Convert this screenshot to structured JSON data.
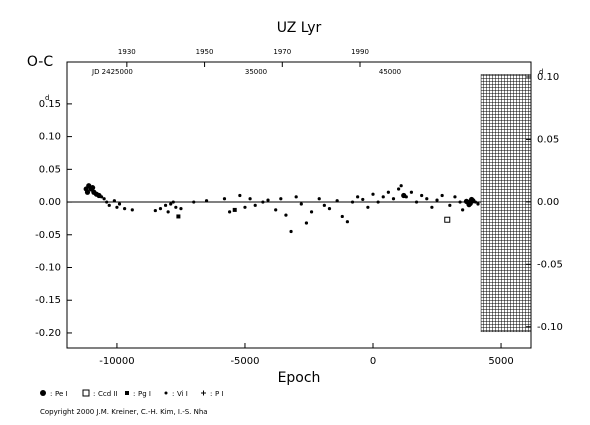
{
  "chart_data": {
    "type": "scatter",
    "title": "UZ Lyr",
    "y_label": "O-C",
    "y_unit": "d",
    "x_label": "Epoch",
    "xlim": [
      -11950,
      6170
    ],
    "xticks": [
      -10000,
      -5000,
      0,
      5000
    ],
    "ylim": [
      -0.223,
      0.214
    ],
    "yticks": [
      {
        "value": 0.15,
        "label": "0.15"
      },
      {
        "value": 0.1,
        "label": "0.10"
      },
      {
        "value": 0.05,
        "label": "0.05"
      },
      {
        "value": 0,
        "label": "0.00"
      },
      {
        "value": -0.05,
        "label": "-0.05"
      },
      {
        "value": -0.1,
        "label": "-0.10"
      },
      {
        "value": -0.15,
        "label": "-0.15"
      },
      {
        "value": -0.2,
        "label": "-0.20"
      }
    ],
    "y2lim": [
      -0.117,
      0.112
    ],
    "y2ticks": [
      {
        "value": 0.1,
        "label": "0.10"
      },
      {
        "value": 0.05,
        "label": "0.05"
      },
      {
        "value": 0,
        "label": "0.00"
      },
      {
        "value": -0.05,
        "label": "-0.05"
      },
      {
        "value": -0.1,
        "label": "-0.10"
      }
    ],
    "x2lim": [
      1914.6,
      2034
    ],
    "x2ticks": [
      1930,
      1950,
      1970,
      1990
    ],
    "jd_labels": [
      "JD 2425000",
      "35000",
      "45000"
    ],
    "shaded_region": {
      "x": [
        4220,
        6170
      ],
      "y2": [
        -0.104,
        0.102
      ]
    },
    "series": [
      {
        "name": "Pe I",
        "marker": "big-dot",
        "color": "#000",
        "x": [
          -11200,
          -11100,
          -11000,
          -10900,
          -11150,
          -10950,
          -10800,
          -10700,
          3700,
          3800,
          3900,
          3750,
          3850,
          3650,
          1200
        ],
        "values": [
          0.02,
          0.025,
          0.02,
          0.015,
          0.015,
          0.022,
          0.012,
          0.01,
          0,
          -0.002,
          0.002,
          -0.004,
          0.004,
          0.001,
          0.01
        ]
      },
      {
        "name": "Ccd II",
        "marker": "open-square",
        "color": "#000",
        "x": [
          2900
        ],
        "values": [
          -0.027
        ]
      },
      {
        "name": "Pg I",
        "marker": "square",
        "color": "#000",
        "x": [
          -7600,
          -5400
        ],
        "values": [
          -0.022,
          -0.012
        ]
      },
      {
        "name": "Vi I",
        "marker": "dot",
        "color": "#000",
        "x": [
          -10600,
          -10500,
          -10400,
          -10300,
          -10100,
          -10000,
          -9900,
          -9700,
          -9400,
          -8500,
          -8300,
          -8100,
          -8000,
          -7900,
          -7800,
          -7700,
          -7500,
          -7000,
          -6500,
          -5800,
          -5600,
          -5200,
          -5000,
          -4800,
          -4600,
          -4300,
          -4100,
          -3800,
          -3600,
          -3400,
          -3200,
          -3000,
          -2800,
          -2600,
          -2400,
          -2100,
          -1900,
          -1700,
          -1400,
          -1200,
          -1000,
          -800,
          -600,
          -400,
          -200,
          0,
          200,
          400,
          600,
          800,
          1000,
          1100,
          1300,
          1500,
          1700,
          1900,
          2100,
          2300,
          2500,
          2700,
          3000,
          3200,
          3400,
          3500,
          4000,
          4100
        ],
        "values": [
          0.008,
          0.005,
          0,
          -0.005,
          0.002,
          -0.008,
          -0.003,
          -0.01,
          -0.012,
          -0.013,
          -0.01,
          -0.005,
          -0.015,
          -0.003,
          0,
          -0.008,
          -0.01,
          0,
          0.002,
          0.005,
          -0.015,
          0.01,
          -0.008,
          0.005,
          -0.005,
          0,
          0.003,
          -0.012,
          0.005,
          -0.02,
          -0.045,
          0.008,
          -0.003,
          -0.032,
          -0.015,
          0.005,
          -0.005,
          -0.01,
          0.002,
          -0.022,
          -0.03,
          0,
          0.008,
          0.004,
          -0.008,
          0.012,
          0,
          0.008,
          0.015,
          0.005,
          0.02,
          0.025,
          0.008,
          0.015,
          0,
          0.01,
          0.005,
          -0.008,
          0.003,
          0.01,
          -0.005,
          0.008,
          0,
          -0.012,
          0,
          -0.003
        ]
      },
      {
        "name": "P I",
        "marker": "plus",
        "color": "#000",
        "x": [],
        "values": []
      }
    ],
    "copyright": "Copyright 2000 J.M. Kreiner, C.-H. Kim, I.-S. Nha"
  }
}
